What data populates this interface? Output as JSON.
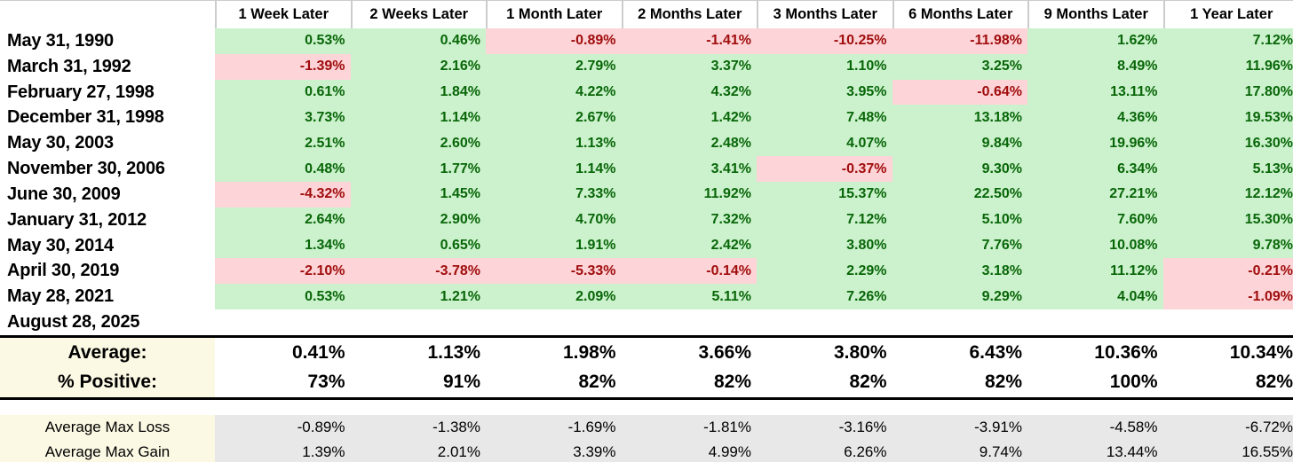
{
  "chart_data": {
    "type": "table",
    "columns": [
      "1 Week Later",
      "2 Weeks Later",
      "1 Month Later",
      "2 Months Later",
      "3 Months Later",
      "6 Months Later",
      "9 Months Later",
      "1 Year Later"
    ],
    "rows": [
      {
        "date": "May 31, 1990",
        "values": [
          "0.53%",
          "0.46%",
          "-0.89%",
          "-1.41%",
          "-10.25%",
          "-11.98%",
          "1.62%",
          "7.12%"
        ]
      },
      {
        "date": "March 31, 1992",
        "values": [
          "-1.39%",
          "2.16%",
          "2.79%",
          "3.37%",
          "1.10%",
          "3.25%",
          "8.49%",
          "11.96%"
        ]
      },
      {
        "date": "February 27, 1998",
        "values": [
          "0.61%",
          "1.84%",
          "4.22%",
          "4.32%",
          "3.95%",
          "-0.64%",
          "13.11%",
          "17.80%"
        ]
      },
      {
        "date": "December 31, 1998",
        "values": [
          "3.73%",
          "1.14%",
          "2.67%",
          "1.42%",
          "7.48%",
          "13.18%",
          "4.36%",
          "19.53%"
        ]
      },
      {
        "date": "May 30, 2003",
        "values": [
          "2.51%",
          "2.60%",
          "1.13%",
          "2.48%",
          "4.07%",
          "9.84%",
          "19.96%",
          "16.30%"
        ]
      },
      {
        "date": "November 30, 2006",
        "values": [
          "0.48%",
          "1.77%",
          "1.14%",
          "3.41%",
          "-0.37%",
          "9.30%",
          "6.34%",
          "5.13%"
        ]
      },
      {
        "date": "June 30, 2009",
        "values": [
          "-4.32%",
          "1.45%",
          "7.33%",
          "11.92%",
          "15.37%",
          "22.50%",
          "27.21%",
          "12.12%"
        ]
      },
      {
        "date": "January 31, 2012",
        "values": [
          "2.64%",
          "2.90%",
          "4.70%",
          "7.32%",
          "7.12%",
          "5.10%",
          "7.60%",
          "15.30%"
        ]
      },
      {
        "date": "May 30, 2014",
        "values": [
          "1.34%",
          "0.65%",
          "1.91%",
          "2.42%",
          "3.80%",
          "7.76%",
          "10.08%",
          "9.78%"
        ]
      },
      {
        "date": "April 30, 2019",
        "values": [
          "-2.10%",
          "-3.78%",
          "-5.33%",
          "-0.14%",
          "2.29%",
          "3.18%",
          "11.12%",
          "-0.21%"
        ]
      },
      {
        "date": "May 28, 2021",
        "values": [
          "0.53%",
          "1.21%",
          "2.09%",
          "5.11%",
          "7.26%",
          "9.29%",
          "4.04%",
          "-1.09%"
        ]
      },
      {
        "date": "August 28, 2025",
        "values": []
      }
    ],
    "summary": {
      "average": {
        "label": "Average:",
        "values": [
          "0.41%",
          "1.13%",
          "1.98%",
          "3.66%",
          "3.80%",
          "6.43%",
          "10.36%",
          "10.34%"
        ]
      },
      "percent_positive": {
        "label": "% Positive:",
        "values": [
          "73%",
          "91%",
          "82%",
          "82%",
          "82%",
          "82%",
          "100%",
          "82%"
        ]
      }
    },
    "extremes": {
      "max_loss": {
        "label": "Average Max Loss",
        "values": [
          "-0.89%",
          "-1.38%",
          "-1.69%",
          "-1.81%",
          "-3.16%",
          "-3.91%",
          "-4.58%",
          "-6.72%"
        ]
      },
      "max_gain": {
        "label": "Average Max Gain",
        "values": [
          "1.39%",
          "2.01%",
          "3.39%",
          "4.99%",
          "6.26%",
          "9.74%",
          "13.44%",
          "16.55%"
        ]
      }
    }
  },
  "colors": {
    "positive_bg": "#ccf2cd",
    "negative_bg": "#fdd4d8",
    "positive_text": "#086608",
    "negative_text": "#a00d0d",
    "label_bg": "#fbf8e3",
    "extremes_value_bg": "#e8e8e8",
    "header_divider": "#cccccc",
    "rule": "#000000"
  }
}
